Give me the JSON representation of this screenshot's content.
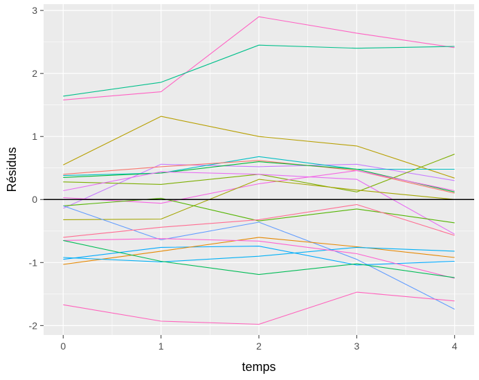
{
  "chart_data": {
    "type": "line",
    "title": "",
    "xlabel": "temps",
    "ylabel": "Résidus",
    "x": [
      0,
      1,
      2,
      3,
      4
    ],
    "xticks": [
      "0",
      "1",
      "2",
      "3",
      "4"
    ],
    "yticks": [
      "-2",
      "-1",
      "0",
      "1",
      "2",
      "3"
    ],
    "ytick_values": [
      -2,
      -1,
      0,
      1,
      2,
      3
    ],
    "xlim": [
      -0.2,
      4.2
    ],
    "ylim": [
      -2.15,
      3.1
    ],
    "grid": true,
    "legend": "none",
    "reference_line": {
      "y": 0,
      "color": "#000000"
    },
    "panel_background": "#ebebeb",
    "grid_color": "#ffffff",
    "series": [
      {
        "color": "#ff61c3",
        "values": [
          1.58,
          1.71,
          2.9,
          2.64,
          2.41
        ]
      },
      {
        "color": "#00c08b",
        "values": [
          1.64,
          1.86,
          2.45,
          2.4,
          2.43
        ]
      },
      {
        "color": "#b79f00",
        "values": [
          0.55,
          1.32,
          1.0,
          0.85,
          0.34
        ]
      },
      {
        "color": "#c77cff",
        "values": [
          -0.14,
          0.56,
          0.52,
          0.56,
          0.3
        ]
      },
      {
        "color": "#00bfc4",
        "values": [
          0.38,
          0.42,
          0.68,
          0.48,
          0.48
        ]
      },
      {
        "color": "#f8766d",
        "values": [
          0.4,
          0.52,
          0.62,
          0.46,
          0.1
        ]
      },
      {
        "color": "#00ba38",
        "values": [
          0.35,
          0.42,
          0.6,
          0.48,
          0.12
        ]
      },
      {
        "color": "#7cae00",
        "values": [
          0.28,
          0.24,
          0.4,
          0.12,
          0.72
        ]
      },
      {
        "color": "#e76bf3",
        "values": [
          0.14,
          0.44,
          0.4,
          0.32,
          -0.55
        ]
      },
      {
        "color": "#f564e3",
        "values": [
          0.03,
          -0.06,
          0.25,
          0.46,
          0.14
        ]
      },
      {
        "color": "#a3a500",
        "values": [
          -0.32,
          -0.31,
          0.32,
          0.15,
          0.0
        ]
      },
      {
        "color": "#53b400",
        "values": [
          -0.1,
          0.02,
          -0.34,
          -0.15,
          -0.37
        ]
      },
      {
        "color": "#619cff",
        "values": [
          -0.1,
          -0.64,
          -0.36,
          -0.95,
          -1.74
        ]
      },
      {
        "color": "#ff6c91",
        "values": [
          -0.6,
          -0.44,
          -0.32,
          -0.08,
          -0.57
        ]
      },
      {
        "color": "#00a9ff",
        "values": [
          -0.95,
          -0.76,
          -0.74,
          -1.04,
          -0.98
        ]
      },
      {
        "color": "#e58700",
        "values": [
          -1.03,
          -0.82,
          -0.6,
          -0.75,
          -0.92
        ]
      },
      {
        "color": "#00b0f6",
        "values": [
          -0.92,
          -0.99,
          -0.9,
          -0.76,
          -0.82
        ]
      },
      {
        "color": "#fd61d1",
        "values": [
          -0.65,
          -0.62,
          -0.66,
          -0.86,
          -1.25
        ]
      },
      {
        "color": "#00bc56",
        "values": [
          -0.65,
          -0.98,
          -1.19,
          -1.02,
          -1.24
        ]
      },
      {
        "color": "#ff62bc",
        "values": [
          -1.67,
          -1.93,
          -1.98,
          -1.47,
          -1.61
        ]
      }
    ]
  }
}
